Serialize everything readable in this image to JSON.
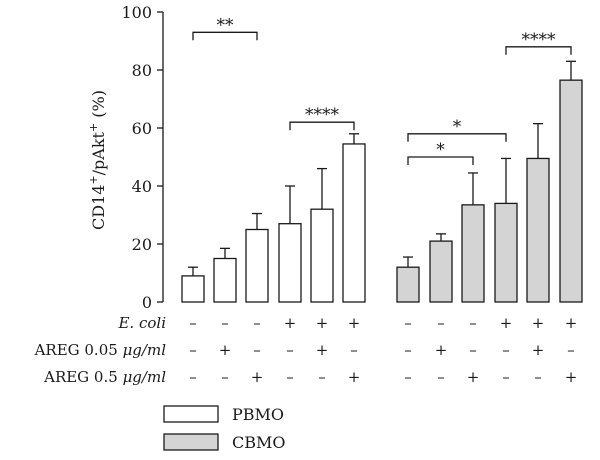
{
  "chart_data": {
    "type": "bar",
    "ylabel_base": "CD14",
    "ylabel_sup1": "+",
    "ylabel_mid": "/pAkt",
    "ylabel_sup2": "+",
    "ylabel_unit": " (%)",
    "ylim": [
      0,
      100
    ],
    "yticks": [
      0,
      20,
      40,
      60,
      80,
      100
    ],
    "grid": false,
    "series": [
      {
        "name": "PBMO",
        "color": "#ffffff",
        "values": [
          9,
          15,
          25,
          27,
          32,
          54.5
        ],
        "errors": [
          3,
          3.5,
          5.5,
          13,
          14,
          3.5
        ]
      },
      {
        "name": "CBMO",
        "color": "#d4d4d4",
        "values": [
          12,
          21,
          33.5,
          34,
          49.5,
          76.5
        ],
        "errors": [
          3.5,
          2.5,
          11,
          15.5,
          12,
          6.5
        ]
      }
    ],
    "conditions": [
      {
        "label_main": "E. coli",
        "label_suffix": "",
        "signs": [
          "–",
          "–",
          "–",
          "+",
          "+",
          "+",
          "–",
          "–",
          "–",
          "+",
          "+",
          "+"
        ]
      },
      {
        "label_main": "AREG 0.05 ",
        "label_suffix": "μg/ml",
        "signs": [
          "–",
          "+",
          "–",
          "–",
          "+",
          "–",
          "–",
          "+",
          "–",
          "–",
          "+",
          "–"
        ]
      },
      {
        "label_main": "AREG 0.5 ",
        "label_suffix": "μg/ml",
        "signs": [
          "–",
          "–",
          "+",
          "–",
          "–",
          "+",
          "–",
          "–",
          "+",
          "–",
          "–",
          "+"
        ]
      }
    ],
    "significance": [
      {
        "from": 0,
        "to": 2,
        "level": 93,
        "label": "**"
      },
      {
        "from": 3,
        "to": 5,
        "level": 62,
        "label": "****"
      },
      {
        "from": 6,
        "to": 8,
        "level": 50,
        "label": "*"
      },
      {
        "from": 6,
        "to": 9,
        "level": 58,
        "label": "*"
      },
      {
        "from": 9,
        "to": 11,
        "level": 88,
        "label": "****"
      }
    ],
    "legend": {
      "placement": "bottom-center"
    }
  }
}
